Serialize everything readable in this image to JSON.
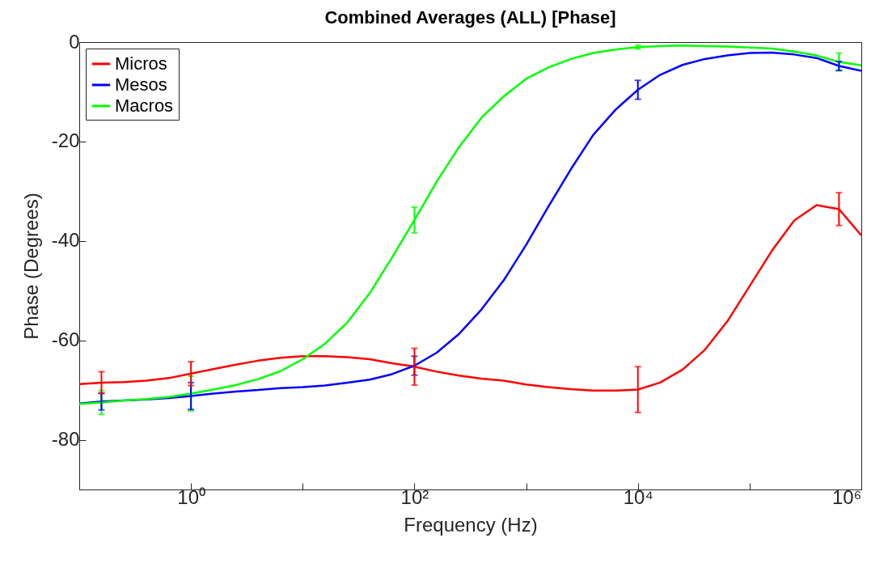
{
  "chart_data": {
    "type": "line",
    "title": "Combined Averages (ALL) [Phase]",
    "xlabel": "Frequency (Hz)",
    "ylabel": "Phase (Degrees)",
    "x": [
      0.1,
      0.158,
      0.251,
      0.398,
      0.631,
      1,
      1.58,
      2.51,
      3.98,
      6.31,
      10,
      15.8,
      25.1,
      39.8,
      63.1,
      100,
      158,
      251,
      398,
      631,
      1000,
      1580,
      2510,
      3980,
      6310,
      10000,
      15800,
      25100,
      39800,
      63100,
      100000,
      158000,
      251000,
      398000,
      631000,
      1000000
    ],
    "series": [
      {
        "name": "Micros",
        "color": "#ff0000",
        "values": [
          -68.8,
          -68.5,
          -68.4,
          -68.1,
          -67.6,
          -66.7,
          -65.8,
          -64.9,
          -64.1,
          -63.5,
          -63.2,
          -63.2,
          -63.4,
          -63.8,
          -64.6,
          -65.3,
          -66.3,
          -67.1,
          -67.7,
          -68.1,
          -68.9,
          -69.4,
          -69.8,
          -70.1,
          -70.1,
          -69.9,
          -68.5,
          -65.9,
          -61.9,
          -56.2,
          -49.1,
          -42.0,
          -35.9,
          -32.8,
          -33.6,
          -38.9
        ],
        "errors": [
          null,
          2.2,
          null,
          null,
          null,
          2.4,
          null,
          null,
          null,
          null,
          null,
          null,
          null,
          null,
          null,
          3.7,
          null,
          null,
          null,
          null,
          null,
          null,
          null,
          null,
          null,
          4.6,
          null,
          null,
          null,
          null,
          null,
          null,
          null,
          null,
          3.3,
          null
        ]
      },
      {
        "name": "Mesos",
        "color": "#0000ff",
        "values": [
          -72.7,
          -72.3,
          -72.1,
          -71.9,
          -71.6,
          -71.2,
          -70.7,
          -70.3,
          -70.0,
          -69.6,
          -69.4,
          -69.1,
          -68.5,
          -67.9,
          -66.8,
          -65.1,
          -62.5,
          -58.7,
          -53.8,
          -47.9,
          -40.8,
          -33.1,
          -25.6,
          -18.7,
          -13.6,
          -9.6,
          -6.6,
          -4.6,
          -3.4,
          -2.7,
          -2.2,
          -2.1,
          -2.5,
          -3.2,
          -4.8,
          -5.8
        ],
        "errors": [
          null,
          1.7,
          null,
          null,
          null,
          2.7,
          null,
          null,
          null,
          null,
          null,
          null,
          null,
          null,
          null,
          1.9,
          null,
          null,
          null,
          null,
          null,
          null,
          null,
          null,
          null,
          1.9,
          null,
          null,
          null,
          null,
          null,
          null,
          null,
          null,
          0.9,
          null
        ]
      },
      {
        "name": "Macros",
        "color": "#00ff00",
        "values": [
          -72.8,
          -72.5,
          -72.1,
          -71.8,
          -71.4,
          -70.7,
          -69.9,
          -69.0,
          -67.8,
          -66.2,
          -63.8,
          -60.7,
          -56.4,
          -50.5,
          -43.3,
          -35.8,
          -28.1,
          -21.1,
          -15.2,
          -10.9,
          -7.4,
          -5.1,
          -3.4,
          -2.2,
          -1.5,
          -1.0,
          -0.8,
          -0.7,
          -0.8,
          -0.9,
          -1.1,
          -1.3,
          -1.9,
          -2.7,
          -4.0,
          -4.7
        ],
        "errors": [
          null,
          2.4,
          null,
          null,
          null,
          3.5,
          null,
          null,
          null,
          null,
          null,
          null,
          null,
          null,
          null,
          2.6,
          null,
          null,
          null,
          null,
          null,
          null,
          null,
          null,
          null,
          0.4,
          null,
          null,
          null,
          null,
          null,
          null,
          null,
          null,
          1.8,
          null
        ]
      }
    ],
    "log": "x",
    "xlim": [
      0.1,
      1000000
    ],
    "xticks": [
      {
        "value": 1,
        "label": "10⁰"
      },
      {
        "value": 10,
        "label": null
      },
      {
        "value": 100,
        "label": "10²"
      },
      {
        "value": 1000,
        "label": null
      },
      {
        "value": 10000,
        "label": "10⁴"
      },
      {
        "value": 100000,
        "label": null
      },
      {
        "value": 1000000,
        "label": "10⁶"
      }
    ],
    "ylim": [
      -90,
      0
    ],
    "yticks": [
      -80,
      -60,
      -40,
      -20,
      0
    ],
    "legend": "top left",
    "marker": "none",
    "line_style": "solid"
  }
}
